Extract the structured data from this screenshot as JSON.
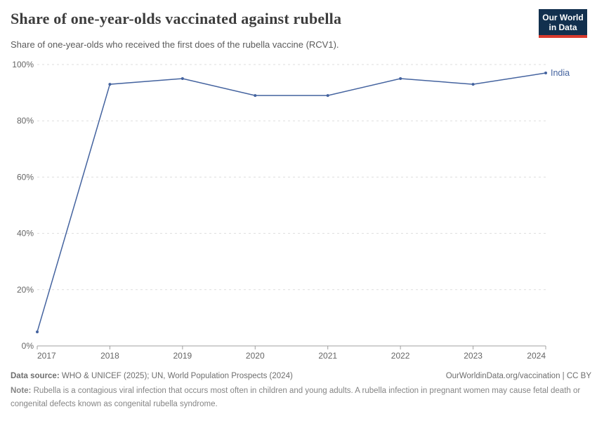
{
  "header": {
    "title": "Share of one-year-olds vaccinated against rubella",
    "subtitle": "Share of one-year-olds who received the first does of the rubella vaccine (RCV1).",
    "logo": {
      "line1": "Our World",
      "line2": "in Data",
      "bg_color": "#12304e",
      "bar_color": "#d93a2d"
    }
  },
  "chart_data": {
    "type": "line",
    "title": "Share of one-year-olds vaccinated against rubella",
    "x": [
      2017,
      2018,
      2019,
      2020,
      2021,
      2022,
      2023,
      2024
    ],
    "x_tick_labels": [
      "2017",
      "2018",
      "2019",
      "2020",
      "2021",
      "2022",
      "2023",
      "2024"
    ],
    "y_ticks": [
      0,
      20,
      40,
      60,
      80,
      100
    ],
    "y_tick_labels": [
      "0%",
      "20%",
      "40%",
      "60%",
      "80%",
      "100%"
    ],
    "ylim": [
      0,
      100
    ],
    "unit": "%",
    "grid": "horizontal-dashed",
    "legend": "end-of-line-label",
    "series": [
      {
        "name": "India",
        "color": "#44639f",
        "values": [
          5,
          93,
          95,
          89,
          89,
          95,
          93,
          97
        ]
      }
    ]
  },
  "footer": {
    "datasource_label": "Data source:",
    "datasource_text": " WHO & UNICEF (2025); UN, World Population Prospects (2024)",
    "rights": "OurWorldinData.org/vaccination | CC BY",
    "note_label": "Note:",
    "note_text": " Rubella is a contagious viral infection that occurs most often in children and young adults. A rubella infection in pregnant women may cause fetal death or congenital defects known as congenital rubella syndrome."
  }
}
